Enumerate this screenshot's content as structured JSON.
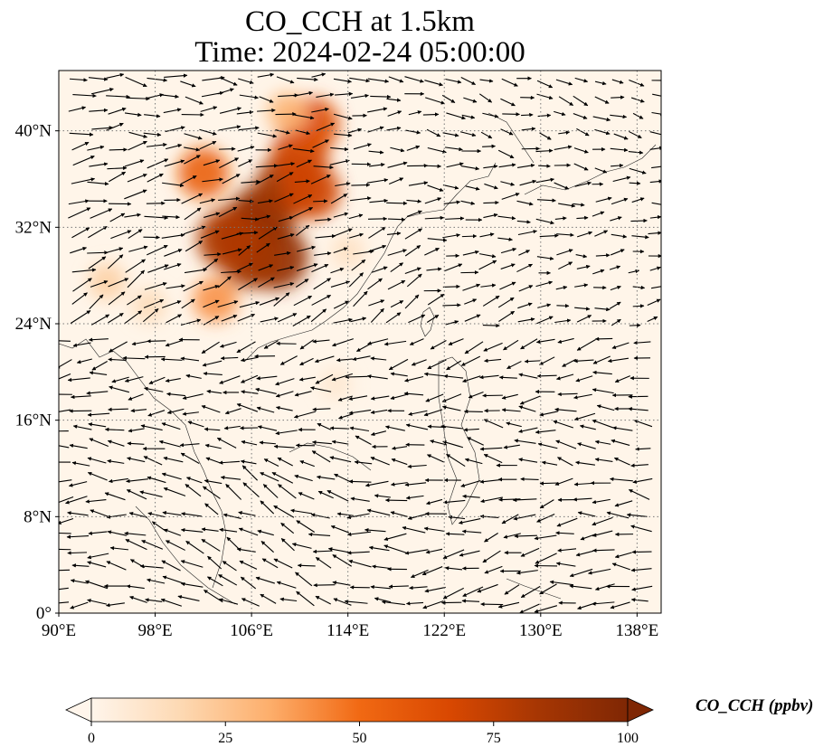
{
  "title": {
    "line1": "CO_CCH at 1.5km",
    "line2": "Time: 2024-02-24 05:00:00"
  },
  "map": {
    "lon_range": [
      90,
      140
    ],
    "lat_range": [
      0,
      45
    ],
    "lon_ticks": [
      "90°E",
      "98°E",
      "106°E",
      "114°E",
      "122°E",
      "130°E",
      "138°E"
    ],
    "lon_tick_values": [
      90,
      98,
      106,
      114,
      122,
      130,
      138
    ],
    "lat_ticks": [
      "0°",
      "8°N",
      "16°N",
      "24°N",
      "32°N",
      "40°N"
    ],
    "lat_tick_values": [
      0,
      8,
      16,
      24,
      32,
      40
    ],
    "gridlines": "dotted",
    "background_color": "#fff5e9",
    "field_variable": "CO_CCH",
    "field_units": "ppbv",
    "plume_cells_ppbv": [
      {
        "lon": 105.5,
        "lat": 31.5,
        "v": 95
      },
      {
        "lon": 107,
        "lat": 33,
        "v": 90
      },
      {
        "lon": 108,
        "lat": 29.5,
        "v": 92
      },
      {
        "lon": 106,
        "lat": 29.5,
        "v": 85
      },
      {
        "lon": 104,
        "lat": 31,
        "v": 80
      },
      {
        "lon": 109,
        "lat": 35.5,
        "v": 85
      },
      {
        "lon": 111,
        "lat": 35,
        "v": 70
      },
      {
        "lon": 110,
        "lat": 38,
        "v": 70
      },
      {
        "lon": 102,
        "lat": 36.5,
        "v": 55
      },
      {
        "lon": 103,
        "lat": 26,
        "v": 40
      },
      {
        "lon": 111,
        "lat": 40.5,
        "v": 65
      },
      {
        "lon": 109,
        "lat": 41.5,
        "v": 30
      },
      {
        "lon": 94,
        "lat": 27.5,
        "v": 20
      },
      {
        "lon": 97.5,
        "lat": 25.5,
        "v": 15
      },
      {
        "lon": 114,
        "lat": 30,
        "v": 12
      },
      {
        "lon": 113,
        "lat": 19,
        "v": 8
      }
    ],
    "wind_vectors_note": "quiver field of wind arrows at 1.5km"
  },
  "colorbar": {
    "label": "CO_CCH (ppbv)",
    "ticks": [
      "0",
      "25",
      "50",
      "75",
      "100"
    ],
    "tick_values": [
      0,
      25,
      50,
      75,
      100
    ],
    "range": [
      0,
      100
    ],
    "extend": "both",
    "colormap": [
      "#fff5eb",
      "#fdd9b3",
      "#fdae6b",
      "#f16913",
      "#d94801",
      "#a63603",
      "#7f2704"
    ]
  }
}
